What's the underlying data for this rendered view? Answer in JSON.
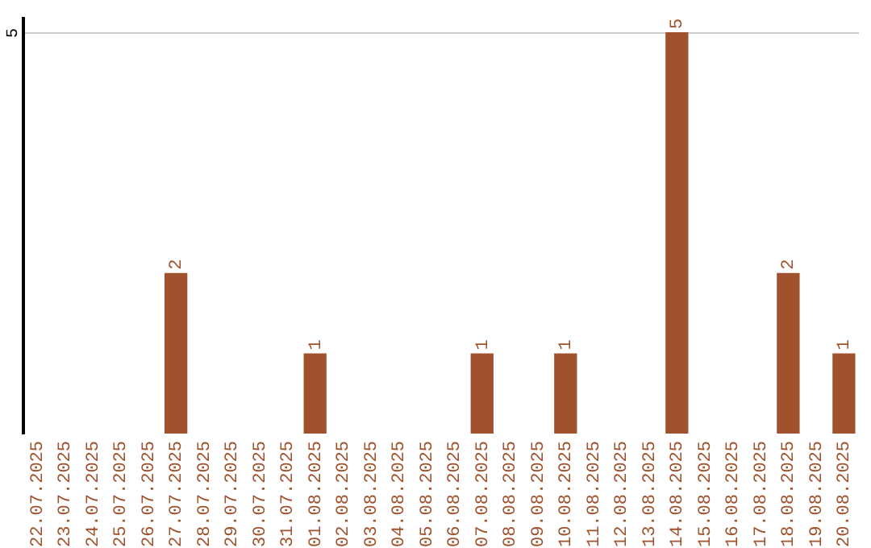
{
  "chart_data": {
    "type": "bar",
    "categories": [
      "22.07.2025",
      "23.07.2025",
      "24.07.2025",
      "25.07.2025",
      "26.07.2025",
      "27.07.2025",
      "28.07.2025",
      "29.07.2025",
      "30.07.2025",
      "31.07.2025",
      "01.08.2025",
      "02.08.2025",
      "03.08.2025",
      "04.08.2025",
      "05.08.2025",
      "06.08.2025",
      "07.08.2025",
      "08.08.2025",
      "09.08.2025",
      "10.08.2025",
      "11.08.2025",
      "12.08.2025",
      "13.08.2025",
      "14.08.2025",
      "15.08.2025",
      "16.08.2025",
      "17.08.2025",
      "18.08.2025",
      "19.08.2025",
      "20.08.2025"
    ],
    "values": [
      0,
      0,
      0,
      0,
      0,
      2,
      0,
      0,
      0,
      0,
      1,
      0,
      0,
      0,
      0,
      0,
      1,
      0,
      0,
      1,
      0,
      0,
      0,
      5,
      0,
      0,
      0,
      2,
      0,
      1
    ],
    "value_labels": [
      null,
      null,
      null,
      null,
      null,
      "2",
      null,
      null,
      null,
      null,
      "1",
      null,
      null,
      null,
      null,
      null,
      "1",
      null,
      null,
      "1",
      null,
      null,
      null,
      "5",
      null,
      null,
      null,
      "2",
      null,
      "1"
    ],
    "color": "#a0522d",
    "ylim": [
      0,
      5.2
    ],
    "yticks": [
      5
    ],
    "grid": "y"
  }
}
